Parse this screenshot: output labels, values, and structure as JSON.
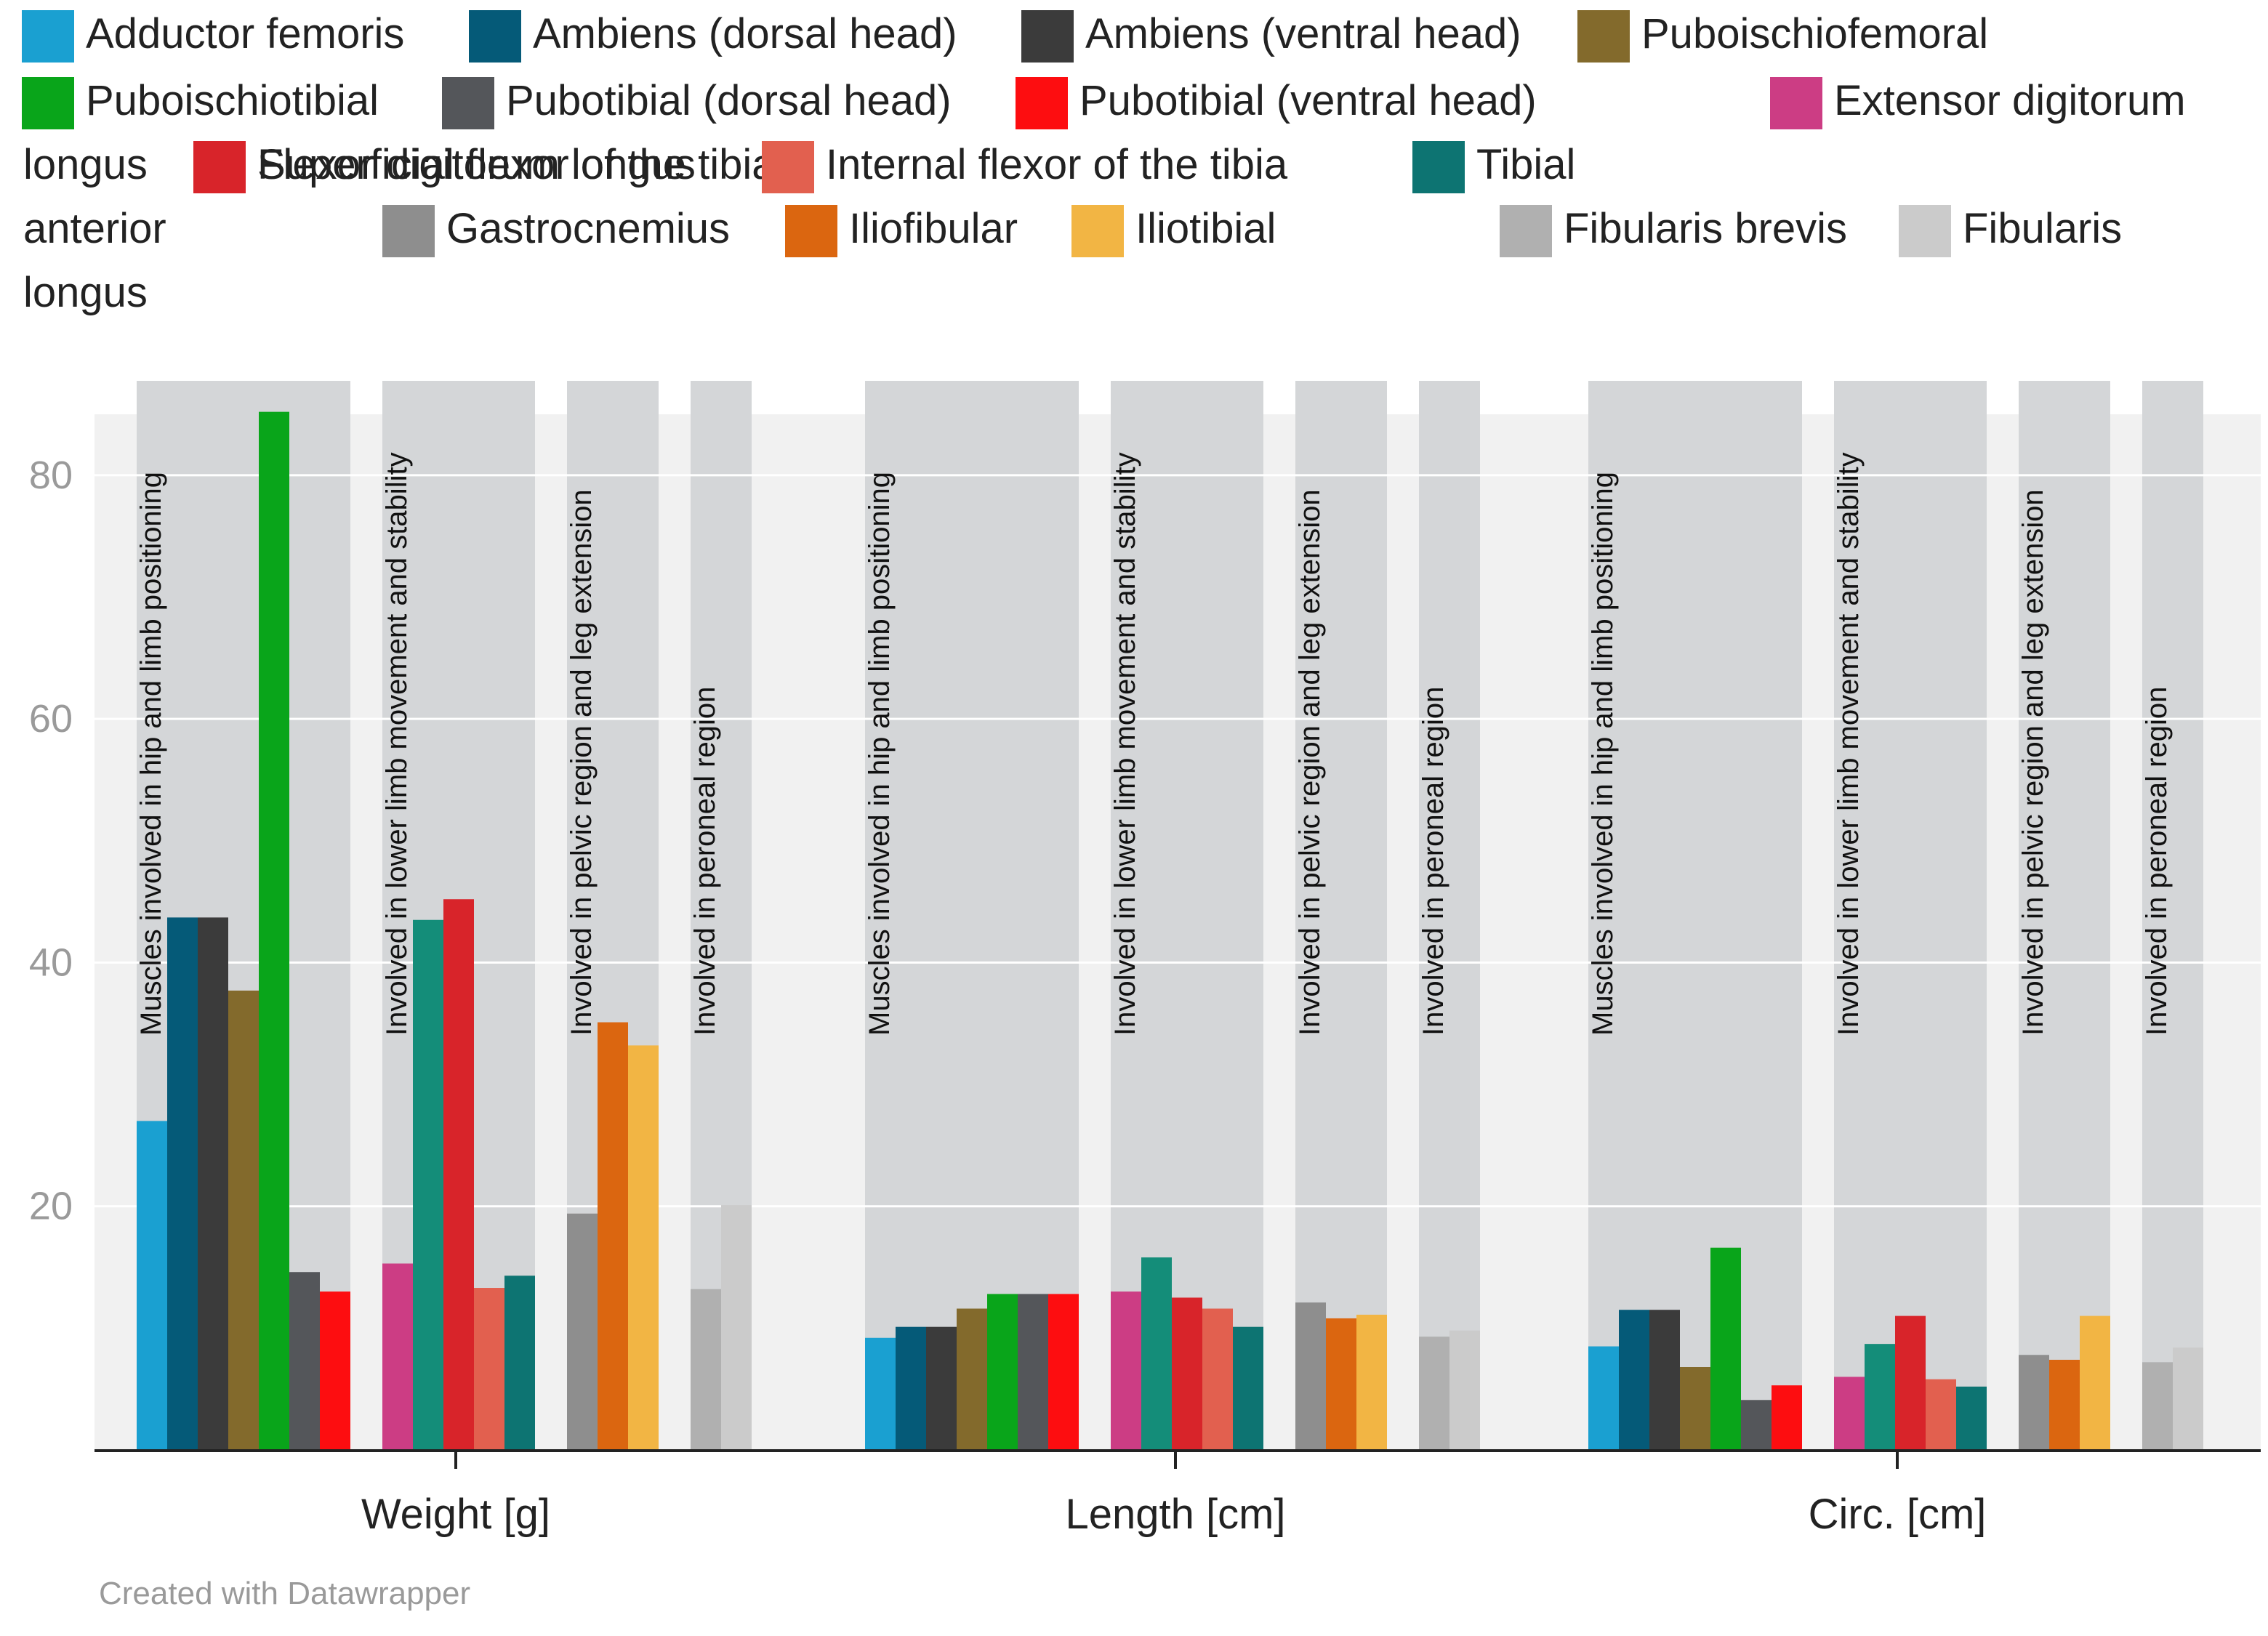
{
  "credit": "Created with Datawrapper",
  "colors": {
    "plot_bg": "#f1f1f1",
    "band": "#d4d6d8",
    "gridline": "#ffffff",
    "axis": "#222222"
  },
  "chart_data": {
    "type": "bar",
    "title": "",
    "xlabel": "",
    "ylabel": "",
    "ylim": [
      0,
      85
    ],
    "yticks": [
      20,
      40,
      60,
      80
    ],
    "grid": true,
    "legend_position": "top",
    "categories": [
      "Weight [g]",
      "Length [cm]",
      "Circ. [cm]"
    ],
    "category_groups": [
      {
        "label": "Muscles involved in hip and limb positioning",
        "muscles": [
          0,
          1,
          2,
          3,
          4,
          5,
          6
        ]
      },
      {
        "label": "Involved in lower limb movement and stability",
        "muscles": [
          7,
          8,
          9,
          10,
          11
        ]
      },
      {
        "label": "Involved in pelvic region and leg extension",
        "muscles": [
          12,
          13,
          14
        ]
      },
      {
        "label": "Involved in peroneal region",
        "muscles": [
          15,
          16
        ]
      }
    ],
    "series": [
      {
        "name": "Adductor femoris",
        "color": "#1aa0d1",
        "values": [
          27,
          9.2,
          8.5
        ]
      },
      {
        "name": "Ambiens (dorsal head)",
        "color": "#055a78",
        "values": [
          43.7,
          10.1,
          11.5
        ]
      },
      {
        "name": "Ambiens (ventral head)",
        "color": "#3b3b3b",
        "values": [
          43.7,
          10.1,
          11.5
        ]
      },
      {
        "name": "Puboischiofemoral",
        "color": "#836a2c",
        "values": [
          37.7,
          11.6,
          6.8
        ]
      },
      {
        "name": "Puboischiotibial",
        "color": "#09a51a",
        "values": [
          85.2,
          12.8,
          16.6
        ]
      },
      {
        "name": "Pubotibial (dorsal head)",
        "color": "#54565a",
        "values": [
          14.6,
          12.8,
          4.1
        ]
      },
      {
        "name": "Pubotibial (ventral head)",
        "color": "#fd0d10",
        "values": [
          13,
          12.8,
          5.3
        ]
      },
      {
        "name": "Extensor digitorum longus",
        "color": "#cc3d84",
        "values": [
          15.3,
          13,
          6
        ]
      },
      {
        "name": "Flexor digitorum longus",
        "color": "#148d79",
        "values": [
          43.5,
          15.8,
          8.7
        ]
      },
      {
        "name": "Superficial flexor of the tibia",
        "color": "#d8242a",
        "values": [
          45.2,
          12.5,
          11
        ]
      },
      {
        "name": "Internal flexor of the tibia",
        "color": "#e2604f",
        "values": [
          13.3,
          11.6,
          5.8
        ]
      },
      {
        "name": "Tibial anterior",
        "color": "#0d7472",
        "values": [
          14.3,
          10.1,
          5.2
        ]
      },
      {
        "name": "Gastrocnemius",
        "color": "#8e8e8e",
        "values": [
          19.4,
          12.1,
          7.8
        ]
      },
      {
        "name": "Iliofibular",
        "color": "#db6610",
        "values": [
          35.1,
          10.8,
          7.4
        ]
      },
      {
        "name": "Iliotibial",
        "color": "#f2b544",
        "values": [
          33.2,
          11.1,
          11
        ]
      },
      {
        "name": "Fibularis brevis",
        "color": "#b0b0b0",
        "values": [
          13.2,
          9.3,
          7.2
        ]
      },
      {
        "name": "Fibularis longus",
        "color": "#cbcbcb",
        "values": [
          20.1,
          9.8,
          8.4
        ]
      }
    ]
  }
}
